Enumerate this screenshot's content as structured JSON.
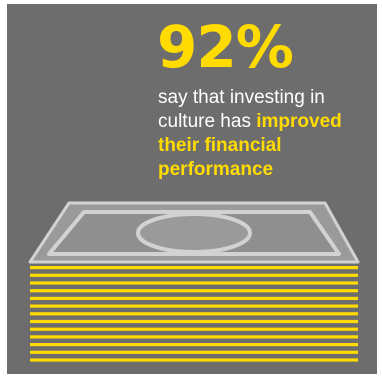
{
  "stat": {
    "value": "92%"
  },
  "caption": {
    "plain_text": "say that investing in culture has ",
    "highlight_text": "improved their financial performance"
  },
  "illustration": {
    "icon": "money-stack-icon",
    "bill_count": 13
  },
  "colors": {
    "background": "#6d6d6d",
    "accent": "#ffdb00",
    "text": "#ffffff",
    "bill_fill": "#9a9a9a",
    "bill_outline": "#d2d2d2"
  }
}
